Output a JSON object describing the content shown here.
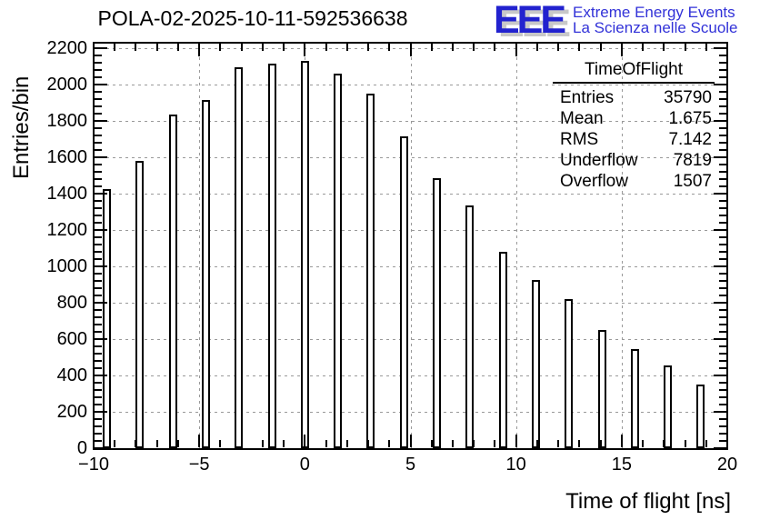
{
  "header": {
    "title": "POLA-02-2025-10-11-592536638",
    "logo": {
      "letters": "EEE",
      "line1": "Extreme Energy Events",
      "line2": "La Scienza nelle Scuole",
      "blue": "#2222cf",
      "shadow_gray": "#c8c8c8"
    }
  },
  "stats": {
    "title": "TimeOfFlight",
    "rows": [
      {
        "label": "Entries",
        "value": "35790"
      },
      {
        "label": "Mean",
        "value": "1.675"
      },
      {
        "label": "RMS",
        "value": "7.142"
      },
      {
        "label": "Underflow",
        "value": "7819"
      },
      {
        "label": "Overflow",
        "value": "1507"
      }
    ]
  },
  "chart_data": {
    "type": "bar",
    "title": "POLA-02-2025-10-11-592536638",
    "xlabel": "Time of flight [ns]",
    "ylabel": "Entries/bin",
    "xlim": [
      -10,
      20
    ],
    "ylim": [
      0,
      2230
    ],
    "grid": true,
    "grid_color": "#999999",
    "bar_color": "#ffffff",
    "bar_border_color": "#000000",
    "bin_width_ns": 1.5625,
    "bar_width_ns": 0.39,
    "x_tick_labels": [
      "−10",
      "−5",
      "0",
      "5",
      "10",
      "15",
      "20"
    ],
    "x_ticks": [
      -10,
      -5,
      0,
      5,
      10,
      15,
      20
    ],
    "x_minor_step": 1,
    "y_ticks": [
      0,
      200,
      400,
      600,
      800,
      1000,
      1200,
      1400,
      1600,
      1800,
      2000,
      2200
    ],
    "y_minor_step": 40,
    "x": [
      -9.375,
      -7.8125,
      -6.25,
      -4.6875,
      -3.125,
      -1.5625,
      0,
      1.5625,
      3.125,
      4.6875,
      6.25,
      7.8125,
      9.375,
      10.9375,
      12.5,
      14.0625,
      15.625,
      17.1875,
      18.75
    ],
    "values": [
      1425,
      1580,
      1835,
      1915,
      2095,
      2115,
      2130,
      2060,
      1950,
      1715,
      1485,
      1335,
      1080,
      925,
      820,
      650,
      545,
      455,
      350
    ],
    "legend": null
  }
}
